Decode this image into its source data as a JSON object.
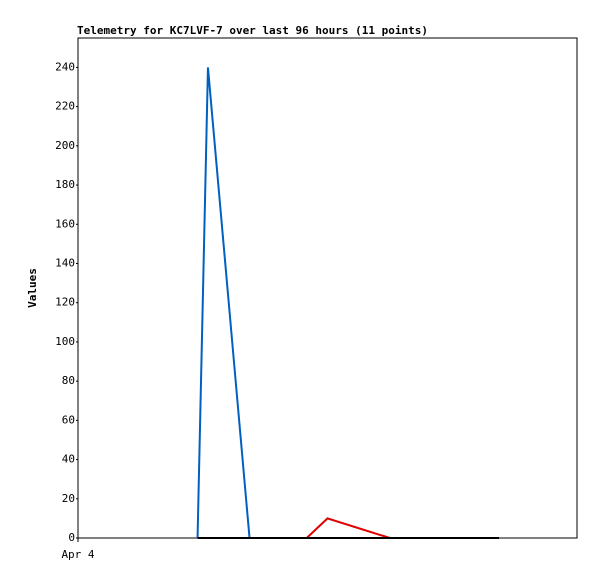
{
  "chart_data": {
    "type": "line",
    "title": "Telemetry for KC7LVF-7 over last 96 hours (11 points)",
    "y_label": "Values",
    "x": [
      23,
      25,
      33,
      44,
      48,
      60,
      81
    ],
    "xlim": [
      0,
      96
    ],
    "xticks": [
      {
        "value": 0,
        "label": "Apr 4"
      }
    ],
    "ylim": [
      0,
      255
    ],
    "yticks": [
      0,
      20,
      40,
      60,
      80,
      100,
      120,
      140,
      160,
      180,
      200,
      220,
      240
    ],
    "grid": false,
    "series": [
      {
        "color": "#0060c0",
        "values": [
          0,
          240,
          0,
          null,
          null,
          null,
          null
        ]
      },
      {
        "color": "#e00000",
        "values": [
          null,
          null,
          null,
          0,
          10,
          0,
          null
        ]
      },
      {
        "color": "#000000",
        "values": [
          0,
          0,
          0,
          0,
          0,
          0,
          0
        ]
      }
    ]
  }
}
